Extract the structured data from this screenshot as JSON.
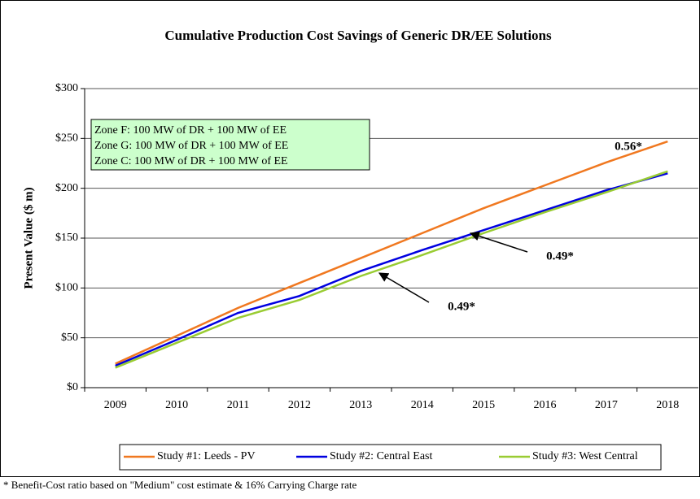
{
  "chart_data": {
    "type": "line",
    "title": "Cumulative Production Cost Savings of Generic DR/EE Solutions",
    "y_label": "Present Value ($ m)",
    "categories": [
      "2009",
      "2010",
      "2011",
      "2012",
      "2013",
      "2014",
      "2015",
      "2016",
      "2017",
      "2018"
    ],
    "series": [
      {
        "name": "Study #1: Leeds - PV",
        "color": "#f07820",
        "values": [
          24,
          52,
          80,
          105,
          130,
          155,
          180,
          203,
          226,
          247
        ]
      },
      {
        "name": "Study #2: Central East",
        "color": "#0000e0",
        "values": [
          22,
          48,
          75,
          92,
          117,
          138,
          158,
          178,
          198,
          215
        ]
      },
      {
        "name": "Study #3: West Central",
        "color": "#99cc33",
        "values": [
          20,
          45,
          70,
          88,
          112,
          133,
          155,
          176,
          196,
          217
        ]
      }
    ],
    "ylim": [
      0,
      300
    ],
    "yticks": [
      {
        "value": 0,
        "label": "$0"
      },
      {
        "value": 50,
        "label": "$50"
      },
      {
        "value": 100,
        "label": "$100"
      },
      {
        "value": 150,
        "label": "$150"
      },
      {
        "value": 200,
        "label": "$200"
      },
      {
        "value": 250,
        "label": "$250"
      },
      {
        "value": 300,
        "label": "$300"
      }
    ],
    "grid": true,
    "legend": "bottom",
    "textbox": [
      "Zone F: 100 MW of DR + 100 MW of EE",
      "Zone G: 100 MW of DR + 100 MW of EE",
      "Zone C: 100 MW of DR + 100 MW of EE"
    ],
    "annotations": [
      "0.56*",
      "0.49*",
      "0.49*"
    ],
    "footnote": "* Benefit-Cost ratio based on \"Medium\" cost estimate & 16% Carrying Charge rate"
  }
}
